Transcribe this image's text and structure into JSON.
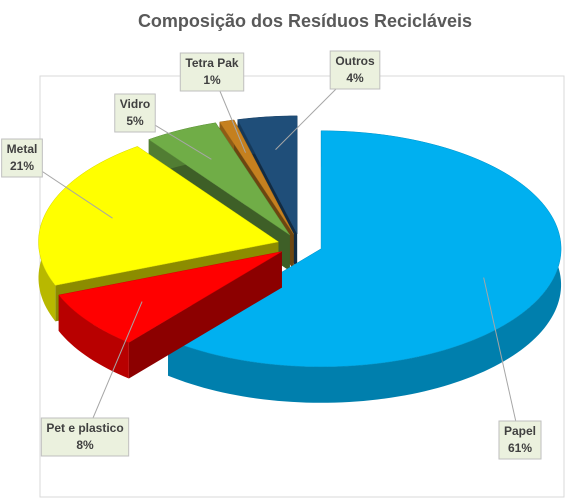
{
  "chart_data": {
    "type": "pie",
    "title": "Composição dos Resíduos Recicláveis",
    "categories": [
      "Papel",
      "Pet e plastico",
      "Metal",
      "Vidro",
      "Tetra Pak",
      "Outros"
    ],
    "values": [
      61,
      8,
      21,
      5,
      1,
      4
    ],
    "value_labels": [
      "61%",
      "8%",
      "21%",
      "5%",
      "1%",
      "4%"
    ],
    "colors": [
      "#00b0f0",
      "#ff0000",
      "#ffff00",
      "#70ad47",
      "#c5801f",
      "#1f4e79"
    ]
  }
}
